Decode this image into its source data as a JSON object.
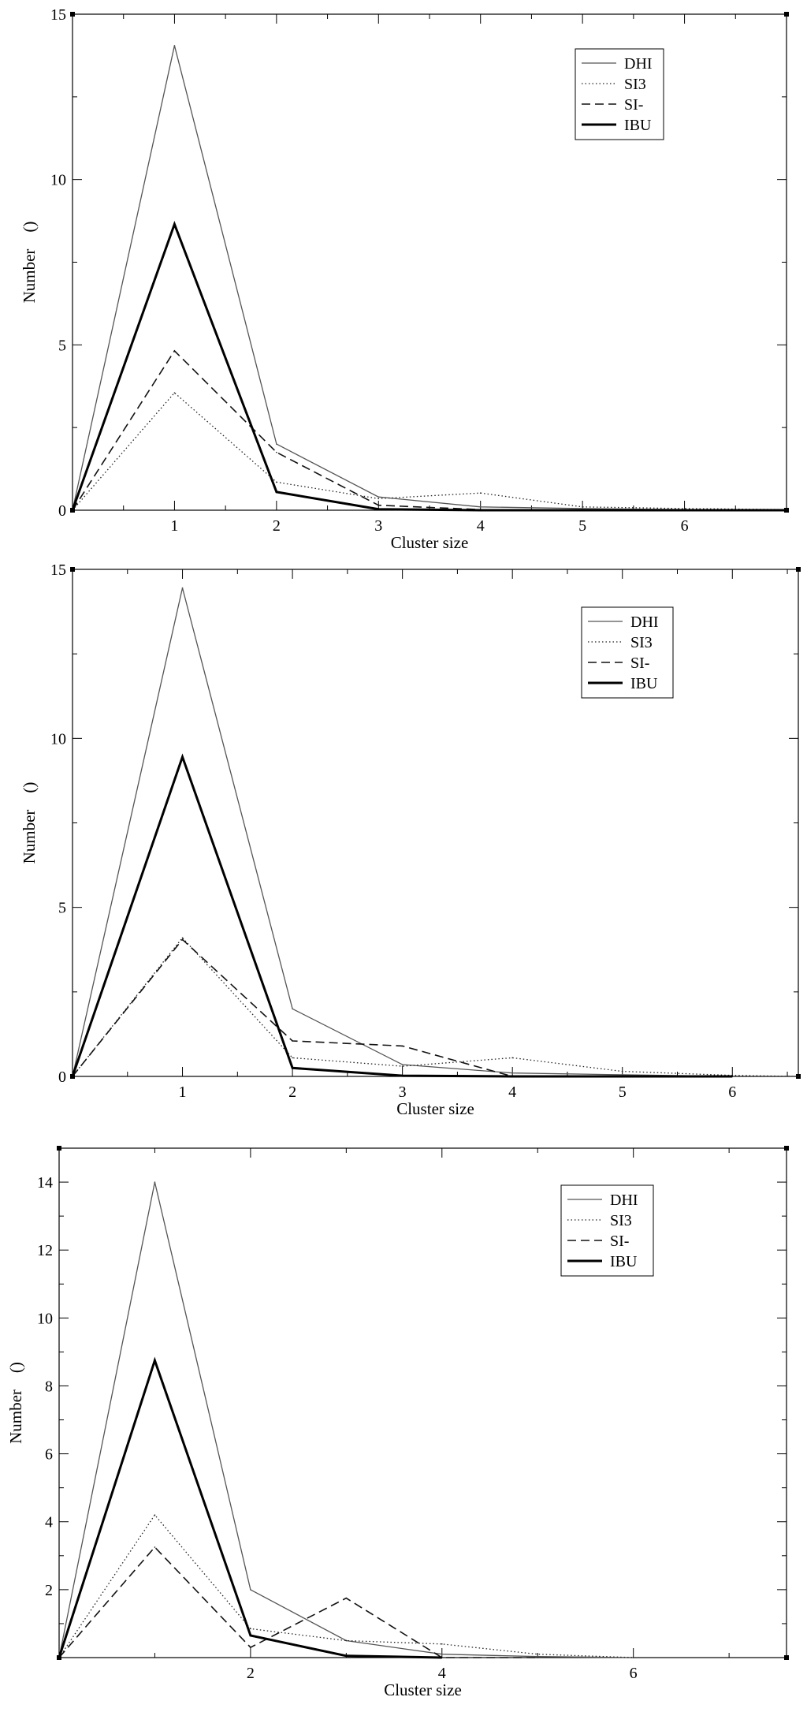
{
  "chart_data": [
    {
      "type": "line",
      "title": "",
      "xlabel": "Cluster size",
      "ylabel": "Number    ()",
      "xlim": [
        0,
        7
      ],
      "ylim": [
        0,
        15
      ],
      "xticks": [
        1,
        2,
        3,
        4,
        5,
        6
      ],
      "yticks": [
        0,
        5,
        10,
        15
      ],
      "legend_position": "top-right",
      "series": [
        {
          "name": "DHI",
          "style": "thin-solid",
          "x": [
            0,
            1,
            2,
            3,
            4,
            5,
            6,
            7
          ],
          "values": [
            0,
            14.05,
            2.0,
            0.4,
            0.1,
            0.05,
            0.02,
            0.0
          ]
        },
        {
          "name": "SI3",
          "style": "dotted",
          "x": [
            0,
            1,
            2,
            3,
            4,
            5,
            6,
            7
          ],
          "values": [
            0,
            3.55,
            0.85,
            0.35,
            0.52,
            0.1,
            0.05,
            0.02
          ]
        },
        {
          "name": "SI-",
          "style": "dashed",
          "x": [
            0,
            1,
            2,
            3,
            4,
            5,
            6,
            7
          ],
          "values": [
            0,
            4.82,
            1.75,
            0.15,
            0.02,
            0.0,
            0.0,
            0.0
          ]
        },
        {
          "name": "IBU",
          "style": "thick-solid",
          "x": [
            0,
            1,
            2,
            3,
            4,
            5,
            6,
            7
          ],
          "values": [
            0,
            8.65,
            0.55,
            0.03,
            0.0,
            0.0,
            0.0,
            0.0
          ]
        }
      ]
    },
    {
      "type": "line",
      "title": "",
      "xlabel": "Cluster size",
      "ylabel": "Number    ()",
      "xlim": [
        0,
        6.6
      ],
      "ylim": [
        0,
        15
      ],
      "xticks": [
        1,
        2,
        3,
        4,
        5,
        6
      ],
      "yticks": [
        0,
        5,
        10,
        15
      ],
      "legend_position": "top-right",
      "series": [
        {
          "name": "DHI",
          "style": "thin-solid",
          "x": [
            0,
            1,
            2,
            3,
            4,
            5,
            6
          ],
          "values": [
            0,
            14.45,
            2.0,
            0.35,
            0.1,
            0.05,
            0.0
          ]
        },
        {
          "name": "SI3",
          "style": "dotted",
          "x": [
            0,
            1,
            2,
            3,
            4,
            5,
            6,
            6.6
          ],
          "values": [
            0,
            4.1,
            0.55,
            0.3,
            0.55,
            0.15,
            0.03,
            0.0
          ]
        },
        {
          "name": "SI-",
          "style": "dashed",
          "x": [
            0,
            1,
            2,
            3,
            4,
            5,
            6
          ],
          "values": [
            0,
            4.05,
            1.05,
            0.9,
            0.0,
            0.0,
            0.0
          ]
        },
        {
          "name": "IBU",
          "style": "thick-solid",
          "x": [
            0,
            1,
            2,
            3,
            4,
            5,
            6
          ],
          "values": [
            0,
            9.45,
            0.25,
            0.02,
            0.0,
            0.0,
            0.0
          ]
        }
      ]
    },
    {
      "type": "line",
      "title": "",
      "xlabel": "Cluster size",
      "ylabel": "Number    ()",
      "xlim": [
        0,
        7.6
      ],
      "ylim": [
        0,
        15
      ],
      "xticks": [
        2,
        4,
        6
      ],
      "yticks": [
        2,
        4,
        6,
        8,
        10,
        12,
        14
      ],
      "legend_position": "top-right",
      "series": [
        {
          "name": "DHI",
          "style": "thin-solid",
          "x": [
            0,
            1,
            2,
            3,
            4,
            5,
            6
          ],
          "values": [
            0,
            14.0,
            2.0,
            0.5,
            0.1,
            0.03,
            0.0
          ]
        },
        {
          "name": "SI3",
          "style": "dotted",
          "x": [
            0,
            1,
            2,
            3,
            4,
            5,
            6
          ],
          "values": [
            0,
            4.2,
            0.85,
            0.5,
            0.4,
            0.1,
            0.0
          ]
        },
        {
          "name": "SI-",
          "style": "dashed",
          "x": [
            0,
            1,
            2,
            3,
            4,
            5
          ],
          "values": [
            0,
            3.25,
            0.3,
            1.75,
            0.0,
            0.0
          ]
        },
        {
          "name": "IBU",
          "style": "thick-solid",
          "x": [
            0,
            1,
            2,
            3,
            4
          ],
          "values": [
            0,
            8.75,
            0.65,
            0.05,
            0.0
          ]
        }
      ]
    }
  ]
}
